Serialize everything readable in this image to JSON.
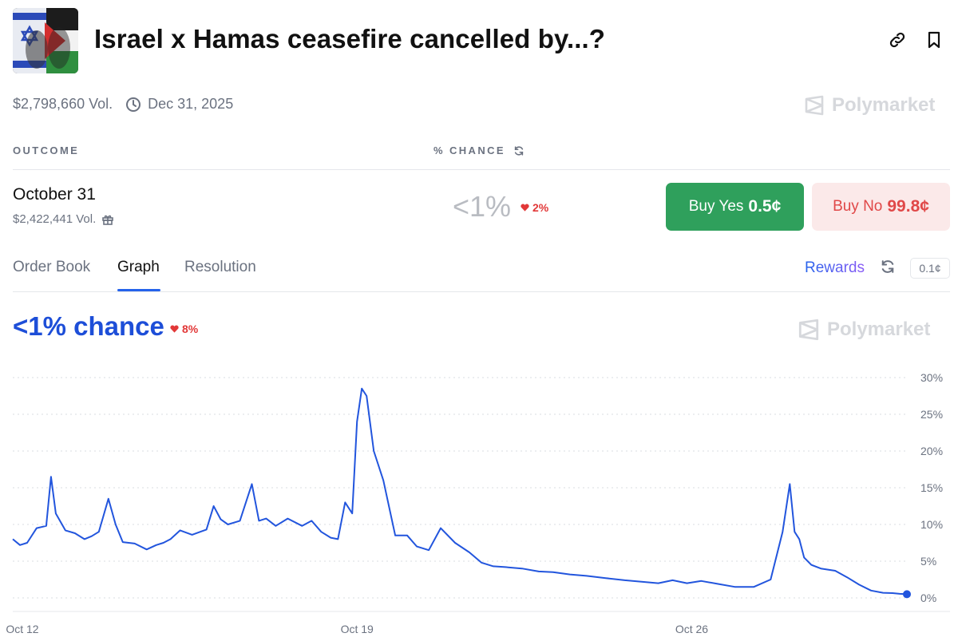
{
  "market": {
    "title": "Israel x Hamas ceasefire cancelled by...?",
    "volume": "$2,798,660 Vol.",
    "end_date": "Dec 31, 2025",
    "brand": "Polymarket",
    "image_icon": "israel-palestine-flags-image"
  },
  "header_actions": {
    "link_icon": "link-icon",
    "bookmark_icon": "bookmark-icon"
  },
  "table": {
    "outcome_header": "OUTCOME",
    "chance_header": "% CHANCE"
  },
  "outcome": {
    "name": "October 31",
    "volume": "$2,422,441 Vol.",
    "chance": "<1%",
    "change": "2%",
    "change_direction": "down",
    "buy_yes_label": "Buy Yes",
    "buy_yes_price": "0.5¢",
    "buy_no_label": "Buy No",
    "buy_no_price": "99.8¢"
  },
  "tabs": [
    {
      "label": "Order Book",
      "active": false
    },
    {
      "label": "Graph",
      "active": true
    },
    {
      "label": "Resolution",
      "active": false
    }
  ],
  "toolbar": {
    "rewards_label": "Rewards",
    "tick_size": "0.1¢"
  },
  "graph": {
    "chance_label": "<1% chance",
    "change": "8%",
    "change_direction": "down"
  },
  "colors": {
    "line": "#2255dd",
    "yes": "#2fa05c",
    "no_text": "#e04848",
    "down": "#e23838",
    "accent": "#1d4ed8"
  },
  "chart_data": {
    "type": "line",
    "ylim": [
      0,
      30
    ],
    "y_ticks": [
      "0%",
      "5%",
      "10%",
      "15%",
      "20%",
      "25%",
      "30%"
    ],
    "x_ticks": [
      "Oct 12",
      "Oct 19",
      "Oct 26"
    ],
    "xlim": [
      11.8,
      30.5
    ],
    "grid": true,
    "series": [
      {
        "x": [
          11.8,
          11.95,
          12.1,
          12.3,
          12.5,
          12.6,
          12.7,
          12.9,
          13.1,
          13.3,
          13.45,
          13.6,
          13.8,
          13.95,
          14.1,
          14.35,
          14.6,
          14.8,
          14.95,
          15.1,
          15.3,
          15.55,
          15.85,
          16.0,
          16.15,
          16.3,
          16.55,
          16.8,
          16.95,
          17.1,
          17.3,
          17.55,
          17.85,
          18.05,
          18.25,
          18.45,
          18.6,
          18.75,
          18.9,
          19.0,
          19.1,
          19.2,
          19.35,
          19.55,
          19.8,
          20.05,
          20.25,
          20.5,
          20.75,
          21.05,
          21.35,
          21.6,
          21.85,
          22.1,
          22.45,
          22.8,
          23.1,
          23.45,
          23.8,
          24.2,
          24.6,
          24.95,
          25.3,
          25.6,
          25.9,
          26.2,
          26.55,
          26.9,
          27.3,
          27.65,
          27.9,
          28.05,
          28.15,
          28.25,
          28.35,
          28.5,
          28.7,
          29.0,
          29.25,
          29.5,
          29.75,
          30.0,
          30.2,
          30.35,
          30.5
        ],
        "y": [
          8,
          7.2,
          7.5,
          9.5,
          9.8,
          16.5,
          11.5,
          9.2,
          8.8,
          8.0,
          8.4,
          9.0,
          13.5,
          10.0,
          7.6,
          7.4,
          6.6,
          7.2,
          7.5,
          8.0,
          9.2,
          8.6,
          9.3,
          12.5,
          10.7,
          10.0,
          10.5,
          15.5,
          10.5,
          10.8,
          9.8,
          10.8,
          9.8,
          10.5,
          9.0,
          8.2,
          8.0,
          13.0,
          11.5,
          24.0,
          28.5,
          27.5,
          20.0,
          16.0,
          8.5,
          8.5,
          7.0,
          6.5,
          9.5,
          7.5,
          6.2,
          4.8,
          4.3,
          4.2,
          4.0,
          3.6,
          3.5,
          3.2,
          3.0,
          2.7,
          2.4,
          2.2,
          2.0,
          2.4,
          2.0,
          2.3,
          1.9,
          1.5,
          1.5,
          2.5,
          9.0,
          15.5,
          9.0,
          8.0,
          5.5,
          4.5,
          4.0,
          3.7,
          2.8,
          1.8,
          1.0,
          0.7,
          0.65,
          0.55,
          0.5
        ]
      }
    ]
  }
}
